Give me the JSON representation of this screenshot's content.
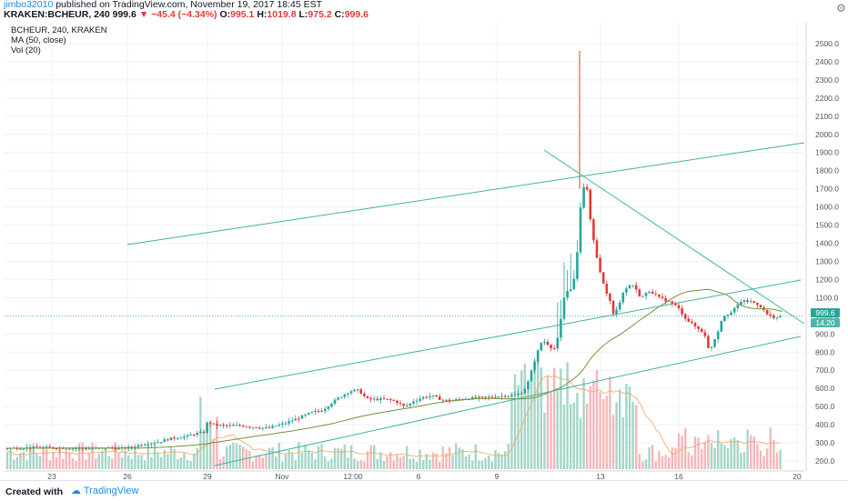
{
  "header": {
    "user": "jimbo32010",
    "published": "published on TradingView.com, November 19, 2017 18:45 EST",
    "symbol": "KRAKEN:BCHEUR, 240",
    "last": "999.6",
    "change": "−45.4 (−4.34%)",
    "o_label": "O:",
    "o_value": "995.1",
    "h_label": "H:",
    "h_value": "1019.8",
    "l_label": "L:",
    "l_value": "975.2",
    "c_label": "C:",
    "c_value": "999.6"
  },
  "legend": {
    "line1": "BCHEUR, 240, KRAKEN",
    "line2": "MA (50, close)",
    "line3": "Vol (20)"
  },
  "badges": {
    "price": "999.6",
    "volume": "14.20"
  },
  "footer": {
    "created": "Created with",
    "brand": "TradingView"
  },
  "colors": {
    "up": "#26a69a",
    "down": "#e53935",
    "ma": "#7a8f3c",
    "trend": "#3fb59a",
    "vol_ma": "#f4a460",
    "grid": "#eef0f3"
  },
  "chart_data": {
    "type": "candlestick",
    "symbol": "BCHEUR",
    "timeframe": "240",
    "exchange": "KRAKEN",
    "y_axis": {
      "min": 200,
      "max": 2500,
      "ticks": [
        200,
        300,
        400,
        500,
        600,
        700,
        800,
        900,
        1000,
        1100,
        1200,
        1300,
        1400,
        1500,
        1600,
        1700,
        1800,
        1900,
        2000,
        2100,
        2200,
        2300,
        2400,
        2500
      ],
      "tick_labels": [
        "200.0",
        "300.0",
        "400.0",
        "500.0",
        "600.0",
        "700.0",
        "800.0",
        "900.0",
        "1000.0",
        "1100.0",
        "1200.0",
        "1300.0",
        "1400.0",
        "1500.0",
        "1600.0",
        "1700.0",
        "1800.0",
        "1900.0",
        "2000.0",
        "2100.0",
        "2200.0",
        "2300.0",
        "2400.0",
        "2500.0"
      ]
    },
    "x_axis": {
      "labels": [
        "23",
        "26",
        "29",
        "Nov",
        "12:00",
        "6",
        "9",
        "13",
        "16",
        "20"
      ]
    },
    "last_price": 999.6,
    "price_path": [
      [
        0,
        270
      ],
      [
        20,
        272
      ],
      [
        40,
        275
      ],
      [
        60,
        272
      ],
      [
        80,
        270
      ],
      [
        100,
        268
      ],
      [
        115,
        272
      ],
      [
        125,
        268
      ],
      [
        140,
        275
      ],
      [
        150,
        290
      ],
      [
        160,
        300
      ],
      [
        170,
        305
      ],
      [
        180,
        320
      ],
      [
        190,
        330
      ],
      [
        200,
        335
      ],
      [
        210,
        350
      ],
      [
        220,
        360
      ],
      [
        224,
        420
      ],
      [
        230,
        400
      ],
      [
        240,
        395
      ],
      [
        250,
        395
      ],
      [
        260,
        395
      ],
      [
        270,
        390
      ],
      [
        280,
        385
      ],
      [
        290,
        380
      ],
      [
        300,
        395
      ],
      [
        310,
        410
      ],
      [
        320,
        430
      ],
      [
        330,
        450
      ],
      [
        340,
        470
      ],
      [
        350,
        480
      ],
      [
        360,
        520
      ],
      [
        370,
        555
      ],
      [
        380,
        585
      ],
      [
        390,
        590
      ],
      [
        395,
        560
      ],
      [
        400,
        540
      ],
      [
        410,
        540
      ],
      [
        420,
        540
      ],
      [
        430,
        530
      ],
      [
        440,
        500
      ],
      [
        445,
        510
      ],
      [
        450,
        530
      ],
      [
        460,
        550
      ],
      [
        470,
        560
      ],
      [
        480,
        540
      ],
      [
        490,
        530
      ],
      [
        500,
        540
      ],
      [
        510,
        545
      ],
      [
        520,
        548
      ],
      [
        530,
        550
      ],
      [
        540,
        555
      ],
      [
        550,
        560
      ],
      [
        560,
        560
      ],
      [
        570,
        580
      ],
      [
        575,
        620
      ],
      [
        580,
        700
      ],
      [
        585,
        780
      ],
      [
        590,
        850
      ],
      [
        595,
        860
      ],
      [
        600,
        830
      ],
      [
        605,
        820
      ],
      [
        610,
        900
      ],
      [
        615,
        1100
      ],
      [
        620,
        1150
      ],
      [
        625,
        1140
      ],
      [
        630,
        1350
      ],
      [
        635,
        1700
      ],
      [
        640,
        1730
      ],
      [
        645,
        1500
      ],
      [
        650,
        1350
      ],
      [
        655,
        1250
      ],
      [
        660,
        1150
      ],
      [
        665,
        1100
      ],
      [
        670,
        1000
      ],
      [
        675,
        1050
      ],
      [
        680,
        1130
      ],
      [
        690,
        1180
      ],
      [
        700,
        1100
      ],
      [
        710,
        1140
      ],
      [
        720,
        1100
      ],
      [
        730,
        1080
      ],
      [
        740,
        1050
      ],
      [
        750,
        980
      ],
      [
        760,
        940
      ],
      [
        770,
        900
      ],
      [
        775,
        800
      ],
      [
        780,
        860
      ],
      [
        785,
        920
      ],
      [
        790,
        1000
      ],
      [
        800,
        1020
      ],
      [
        810,
        1080
      ],
      [
        820,
        1080
      ],
      [
        830,
        1060
      ],
      [
        840,
        1000
      ],
      [
        850,
        990
      ],
      [
        860,
        999.6
      ]
    ],
    "overlays": {
      "moving_average": "MA (50, close)",
      "volume_ma": "Vol (20)"
    }
  }
}
